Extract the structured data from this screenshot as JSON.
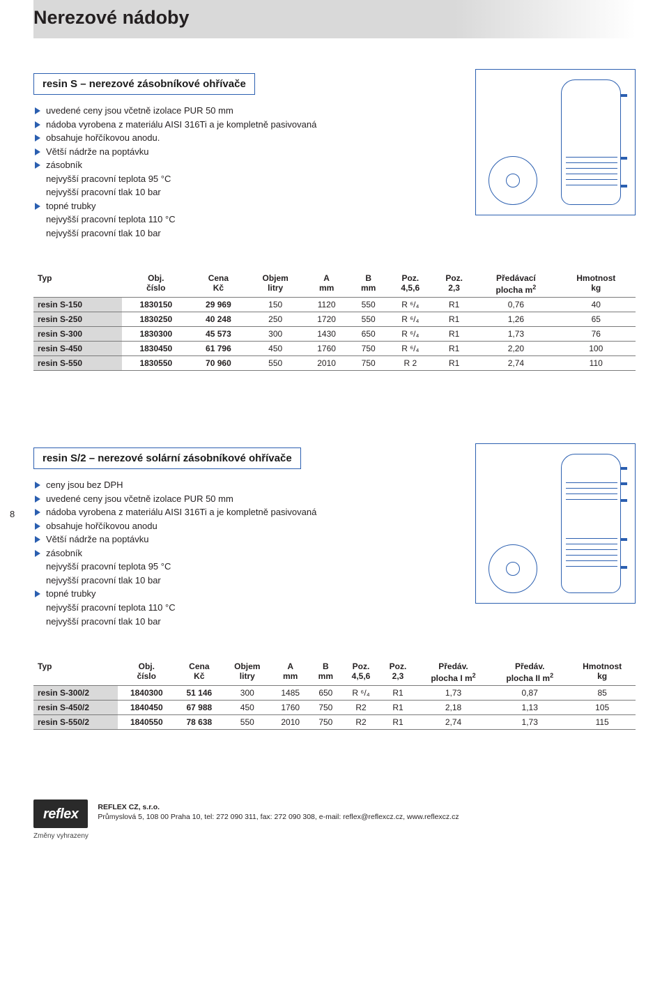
{
  "page_title": "Nerezové nádoby",
  "page_number": "8",
  "colors": {
    "accent": "#2b5fb0",
    "header_bg": "#d9d9d9",
    "row_label_bg": "#d9d9d9",
    "text": "#231f20"
  },
  "section1": {
    "title": "resin S – nerezové zásobníkové ohřívače",
    "bullets": [
      {
        "marker": true,
        "text": "uvedené ceny jsou včetně izolace PUR 50 mm"
      },
      {
        "marker": true,
        "text": "nádoba vyrobena z materiálu AISI 316Ti a je kompletně pasivovaná"
      },
      {
        "marker": true,
        "text": "obsahuje hořčíkovou anodu."
      },
      {
        "marker": true,
        "text": "Větší nádrže na poptávku"
      },
      {
        "marker": true,
        "text": "zásobník"
      },
      {
        "marker": false,
        "text": "nejvyšší pracovní teplota 95 °C"
      },
      {
        "marker": false,
        "text": "nejvyšší pracovní tlak 10 bar"
      },
      {
        "marker": true,
        "text": "topné trubky"
      },
      {
        "marker": false,
        "text": "nejvyšší pracovní teplota 110 °C"
      },
      {
        "marker": false,
        "text": "nejvyšší pracovní tlak 10 bar"
      }
    ],
    "table": {
      "headers": [
        {
          "l1": "Typ",
          "l2": ""
        },
        {
          "l1": "Obj.",
          "l2": "číslo"
        },
        {
          "l1": "Cena",
          "l2": "Kč"
        },
        {
          "l1": "Objem",
          "l2": "litry"
        },
        {
          "l1": "A",
          "l2": "mm"
        },
        {
          "l1": "B",
          "l2": "mm"
        },
        {
          "l1": "Poz.",
          "l2": "4,5,6"
        },
        {
          "l1": "Poz.",
          "l2": "2,3"
        },
        {
          "l1": "Předávací",
          "l2": "plocha m²"
        },
        {
          "l1": "Hmotnost",
          "l2": "kg"
        }
      ],
      "rows": [
        [
          "resin S-150",
          "1830150",
          "29 969",
          "150",
          "1120",
          "550",
          "R ⁶/₄",
          "R1",
          "0,76",
          "40"
        ],
        [
          "resin S-250",
          "1830250",
          "40 248",
          "250",
          "1720",
          "550",
          "R ⁶/₄",
          "R1",
          "1,26",
          "65"
        ],
        [
          "resin S-300",
          "1830300",
          "45 573",
          "300",
          "1430",
          "650",
          "R ⁶/₄",
          "R1",
          "1,73",
          "76"
        ],
        [
          "resin S-450",
          "1830450",
          "61 796",
          "450",
          "1760",
          "750",
          "R ⁶/₄",
          "R1",
          "2,20",
          "100"
        ],
        [
          "resin S-550",
          "1830550",
          "70 960",
          "550",
          "2010",
          "750",
          "R 2",
          "R1",
          "2,74",
          "110"
        ]
      ]
    }
  },
  "section2": {
    "title": "resin S/2 – nerezové solární zásobníkové ohřívače",
    "bullets": [
      {
        "marker": true,
        "text": "ceny jsou bez DPH"
      },
      {
        "marker": true,
        "text": "uvedené ceny jsou včetně izolace PUR 50 mm"
      },
      {
        "marker": true,
        "text": "nádoba vyrobena z materiálu AISI 316Ti a je kompletně pasivovaná"
      },
      {
        "marker": true,
        "text": "obsahuje hořčíkovou anodu"
      },
      {
        "marker": true,
        "text": "Větší nádrže na poptávku"
      },
      {
        "marker": true,
        "text": "zásobník"
      },
      {
        "marker": false,
        "text": "nejvyšší pracovní teplota 95 °C"
      },
      {
        "marker": false,
        "text": "nejvyšší pracovní tlak 10 bar"
      },
      {
        "marker": true,
        "text": "topné trubky"
      },
      {
        "marker": false,
        "text": "nejvyšší pracovní teplota 110 °C"
      },
      {
        "marker": false,
        "text": "nejvyšší pracovní tlak 10 bar"
      }
    ],
    "table": {
      "headers": [
        {
          "l1": "Typ",
          "l2": ""
        },
        {
          "l1": "Obj.",
          "l2": "číslo"
        },
        {
          "l1": "Cena",
          "l2": "Kč"
        },
        {
          "l1": "Objem",
          "l2": "litry"
        },
        {
          "l1": "A",
          "l2": "mm"
        },
        {
          "l1": "B",
          "l2": "mm"
        },
        {
          "l1": "Poz.",
          "l2": "4,5,6"
        },
        {
          "l1": "Poz.",
          "l2": "2,3"
        },
        {
          "l1": "Předáv.",
          "l2": "plocha I m²"
        },
        {
          "l1": "Předáv.",
          "l2": "plocha II m²"
        },
        {
          "l1": "Hmotnost",
          "l2": "kg"
        }
      ],
      "rows": [
        [
          "resin S-300/2",
          "1840300",
          "51 146",
          "300",
          "1485",
          "650",
          "R ⁶/₄",
          "R1",
          "1,73",
          "0,87",
          "85"
        ],
        [
          "resin S-450/2",
          "1840450",
          "67 988",
          "450",
          "1760",
          "750",
          "R2",
          "R1",
          "2,18",
          "1,13",
          "105"
        ],
        [
          "resin S-550/2",
          "1840550",
          "78 638",
          "550",
          "2010",
          "750",
          "R2",
          "R1",
          "2,74",
          "1,73",
          "115"
        ]
      ]
    }
  },
  "footer": {
    "logo": "reflex",
    "company": "REFLEX CZ, s.r.o.",
    "address": "Průmyslová 5, 108 00 Praha 10, tel: 272 090 311, fax: 272 090 308, e-mail: reflex@reflexcz.cz, www.reflexcz.cz",
    "changes": "Změny vyhrazeny"
  }
}
